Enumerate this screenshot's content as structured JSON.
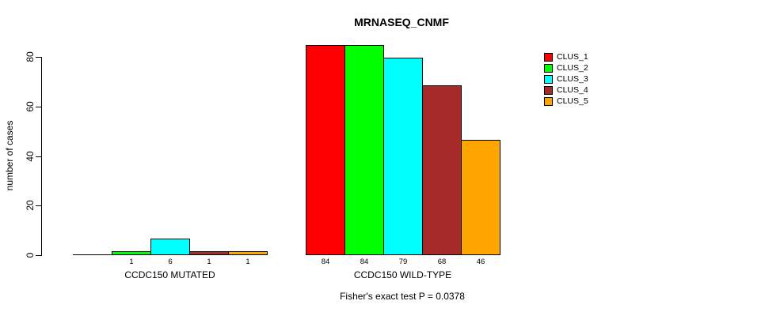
{
  "chart_data": {
    "type": "bar",
    "title": "MRNASEQ_CNMF",
    "xlabel": "",
    "ylabel": "number of cases",
    "ylim": [
      0,
      84
    ],
    "yticks": [
      0,
      20,
      40,
      60,
      80
    ],
    "grid": false,
    "legend_position": "right",
    "categories": [
      "CCDC150 MUTATED",
      "CCDC150 WILD-TYPE"
    ],
    "series": [
      {
        "name": "CLUS_1",
        "color": "#FF0000",
        "values": [
          0,
          84
        ]
      },
      {
        "name": "CLUS_2",
        "color": "#00FF00",
        "values": [
          1,
          84
        ]
      },
      {
        "name": "CLUS_3",
        "color": "#00FFFF",
        "values": [
          6,
          79
        ]
      },
      {
        "name": "CLUS_4",
        "color": "#A52A2A",
        "values": [
          1,
          68
        ]
      },
      {
        "name": "CLUS_5",
        "color": "#FFA500",
        "values": [
          1,
          46
        ]
      }
    ],
    "bar_labels": [
      [
        "",
        "1",
        "6",
        "1",
        "1"
      ],
      [
        "84",
        "84",
        "79",
        "68",
        "46"
      ]
    ],
    "annotation": "Fisher's exact test P = 0.0378"
  }
}
